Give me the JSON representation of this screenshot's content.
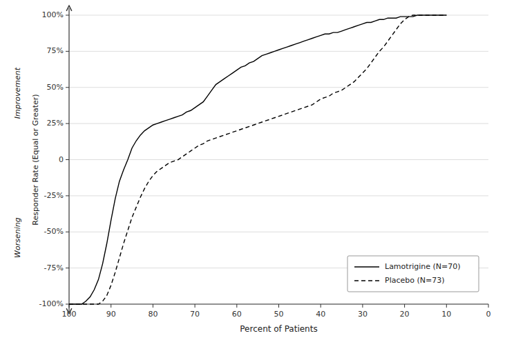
{
  "chart_data": {
    "type": "line",
    "xlabel": "Percent of Patients",
    "ylabel": "Responder Rate (Equal or Greater)",
    "annotations": [
      "Improvement",
      "Worsening"
    ],
    "xlim": [
      100,
      0
    ],
    "ylim": [
      -100,
      100
    ],
    "xticks": [
      100,
      90,
      80,
      70,
      60,
      50,
      40,
      30,
      20,
      10,
      0
    ],
    "yticks": [
      {
        "value": -100,
        "label": "-100%"
      },
      {
        "value": -75,
        "label": "-75%"
      },
      {
        "value": -50,
        "label": "-50%"
      },
      {
        "value": -25,
        "label": "-25%"
      },
      0,
      {
        "value": 25,
        "label": "25%"
      },
      {
        "value": 50,
        "label": "50%"
      },
      {
        "value": 75,
        "label": "75%"
      },
      {
        "value": 100,
        "label": "100%"
      }
    ],
    "grid": true,
    "legend": "lower right",
    "x": [
      100,
      99,
      98,
      97,
      96,
      95,
      94,
      93,
      92,
      91,
      90,
      89,
      88,
      87,
      86,
      85,
      84,
      83,
      82,
      81,
      80,
      79,
      78,
      77,
      76,
      75,
      74,
      73,
      72,
      71,
      70,
      69,
      68,
      67,
      66,
      65,
      64,
      63,
      62,
      61,
      60,
      59,
      58,
      57,
      56,
      55,
      54,
      53,
      52,
      51,
      50,
      49,
      48,
      47,
      46,
      45,
      44,
      43,
      42,
      41,
      40,
      39,
      38,
      37,
      36,
      35,
      34,
      33,
      32,
      31,
      30,
      29,
      28,
      27,
      26,
      25,
      24,
      23,
      22,
      21,
      20,
      19,
      18,
      17,
      16,
      15,
      14,
      13,
      12,
      11,
      10
    ],
    "series": [
      {
        "name": "Lamotrigine (N=70)",
        "color": "#000000",
        "line_style": "solid",
        "values": [
          -100,
          -100,
          -100,
          -100,
          -98,
          -95,
          -90,
          -83,
          -72,
          -58,
          -42,
          -27,
          -15,
          -7,
          0,
          8,
          13,
          17,
          20,
          22,
          24,
          25,
          26,
          27,
          28,
          29,
          30,
          31,
          33,
          34,
          36,
          38,
          40,
          44,
          48,
          52,
          54,
          56,
          58,
          60,
          62,
          64,
          65,
          67,
          68,
          70,
          72,
          73,
          74,
          75,
          76,
          77,
          78,
          79,
          80,
          81,
          82,
          83,
          84,
          85,
          86,
          87,
          87,
          88,
          88,
          89,
          90,
          91,
          92,
          93,
          94,
          95,
          95,
          96,
          97,
          97,
          98,
          98,
          98,
          99,
          99,
          99,
          99,
          100,
          100,
          100,
          100,
          100,
          100,
          100,
          100
        ]
      },
      {
        "name": "Placebo (N=73)",
        "color": "#000000",
        "line_style": "dashed",
        "values": [
          -100,
          -100,
          -100,
          -100,
          -100,
          -100,
          -100,
          -100,
          -98,
          -94,
          -87,
          -78,
          -68,
          -58,
          -49,
          -40,
          -33,
          -26,
          -20,
          -15,
          -11,
          -8,
          -6,
          -4,
          -2,
          -1,
          0,
          2,
          4,
          6,
          8,
          10,
          11,
          13,
          14,
          15,
          16,
          17,
          18,
          19,
          20,
          21,
          22,
          23,
          24,
          25,
          26,
          27,
          28,
          29,
          30,
          31,
          32,
          33,
          34,
          35,
          36,
          37,
          38,
          40,
          42,
          43,
          44,
          46,
          47,
          48,
          50,
          52,
          54,
          57,
          60,
          63,
          67,
          71,
          75,
          78,
          82,
          86,
          90,
          94,
          97,
          99,
          100,
          100,
          100,
          100,
          100,
          100,
          100,
          100,
          100
        ]
      }
    ]
  }
}
